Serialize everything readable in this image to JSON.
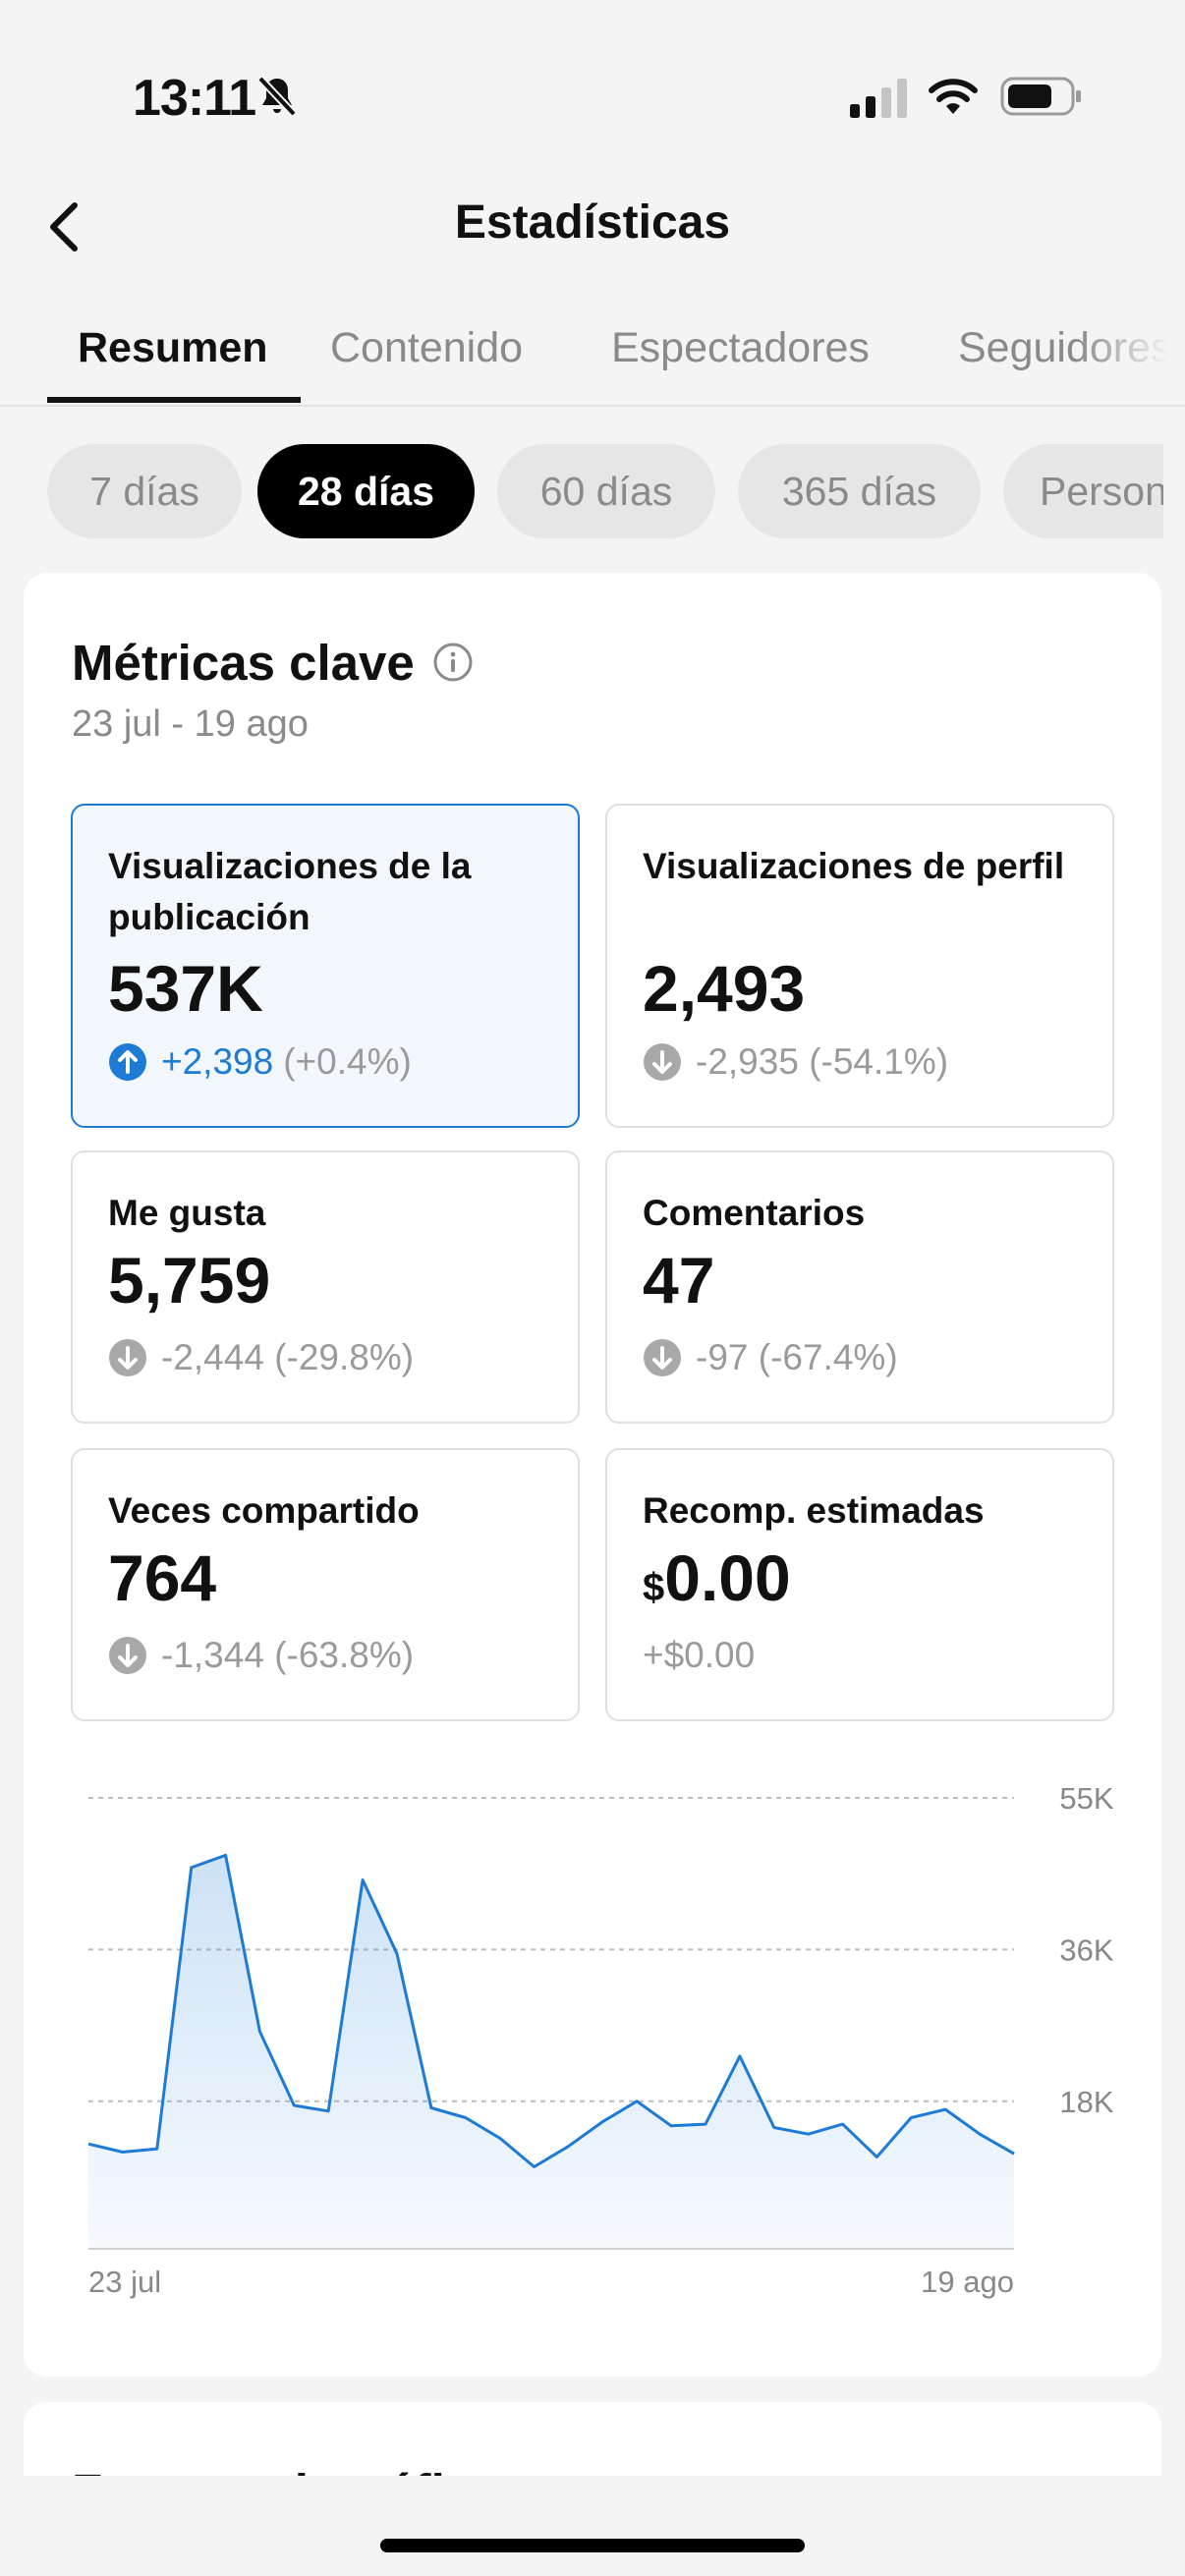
{
  "status_bar": {
    "time": "13:11",
    "bell_icon": "bell-slash-icon",
    "signal_icon": "cellular-signal-icon",
    "wifi_icon": "wifi-icon",
    "battery_icon": "battery-icon"
  },
  "header": {
    "back_icon": "chevron-left-icon",
    "title": "Estadísticas"
  },
  "tabs": [
    {
      "label": "Resumen",
      "active": true
    },
    {
      "label": "Contenido",
      "active": false
    },
    {
      "label": "Espectadores",
      "active": false
    },
    {
      "label": "Seguidores",
      "active": false
    }
  ],
  "periods": [
    {
      "label": "7 días",
      "active": false
    },
    {
      "label": "28 días",
      "active": true
    },
    {
      "label": "60 días",
      "active": false
    },
    {
      "label": "365 días",
      "active": false
    },
    {
      "label": "Personalizado",
      "active": false
    }
  ],
  "key_metrics": {
    "title": "Métricas clave",
    "info_icon": "info-icon",
    "date_range": "23 jul - 19 ago",
    "metrics": [
      {
        "label": "Visualizaciones de la publicación",
        "value": "537K",
        "delta": "+2,398",
        "percent": "(+0.4%)",
        "trend": "up",
        "selected": true
      },
      {
        "label": "Visualizaciones de perfil",
        "value": "2,493",
        "delta": "-2,935",
        "percent": "(-54.1%)",
        "trend": "down",
        "selected": false
      },
      {
        "label": "Me gusta",
        "value": "5,759",
        "delta": "-2,444",
        "percent": "(-29.8%)",
        "trend": "down",
        "selected": false
      },
      {
        "label": "Comentarios",
        "value": "47",
        "delta": "-97",
        "percent": "(-67.4%)",
        "trend": "down",
        "selected": false
      },
      {
        "label": "Veces compartido",
        "value": "764",
        "delta": "-1,344",
        "percent": "(-63.8%)",
        "trend": "down",
        "selected": false
      },
      {
        "label": "Recomp. estimadas",
        "currency": "$",
        "value": "0.00",
        "delta": "+$0.00",
        "percent": "",
        "trend": "none",
        "selected": false
      }
    ]
  },
  "chart_data": {
    "type": "area",
    "x_start_label": "23 jul",
    "x_end_label": "19 ago",
    "y_ticks": [
      "55K",
      "36K",
      "18K"
    ],
    "y_tick_values": [
      55000,
      36500,
      18000
    ],
    "ylim": [
      0,
      55000
    ],
    "color": "#1d7bd6",
    "grid": "dashed",
    "values": [
      12800,
      11800,
      12200,
      46500,
      48000,
      26500,
      17500,
      16800,
      45000,
      36000,
      17200,
      16000,
      13500,
      10000,
      12500,
      15500,
      18000,
      15000,
      15200,
      23500,
      14800,
      14000,
      15200,
      11200,
      16000,
      17000,
      14000,
      11600
    ]
  },
  "next_section": {
    "title": "Fuentes de tráfico"
  }
}
